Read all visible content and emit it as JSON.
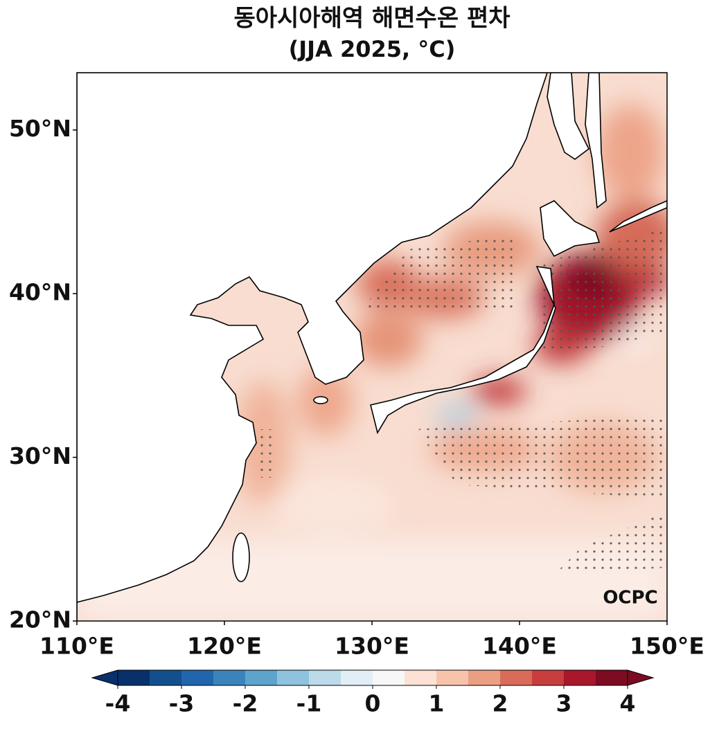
{
  "chart_data": {
    "type": "map",
    "title": "동아시아해역 해면수온 편차",
    "subtitle": "(JJA 2025, °C)",
    "logo": "OCPC",
    "xlim": [
      110,
      150
    ],
    "ylim": [
      20,
      53.5
    ],
    "xticks": [
      {
        "value": 110,
        "label": "110°E"
      },
      {
        "value": 120,
        "label": "120°E"
      },
      {
        "value": 130,
        "label": "130°E"
      },
      {
        "value": 140,
        "label": "140°E"
      },
      {
        "value": 150,
        "label": "150°E"
      }
    ],
    "yticks": [
      {
        "value": 20,
        "label": "20°N"
      },
      {
        "value": 30,
        "label": "30°N"
      },
      {
        "value": 40,
        "label": "40°N"
      },
      {
        "value": 50,
        "label": "50°N"
      }
    ],
    "colorbar": {
      "vmin": -4,
      "vmax": 4,
      "ticks": [
        -4,
        -3,
        -2,
        -1,
        0,
        1,
        2,
        3,
        4
      ],
      "colors": [
        "#08306b",
        "#134f8c",
        "#2166ac",
        "#3a84bb",
        "#5ea3cb",
        "#8fc2dd",
        "#bcdaea",
        "#e1eef5",
        "#f7f7f7",
        "#fbe2d5",
        "#f7c4ab",
        "#eb9f82",
        "#d96c59",
        "#c73e3d",
        "#a8172b",
        "#7d0b22"
      ]
    }
  }
}
